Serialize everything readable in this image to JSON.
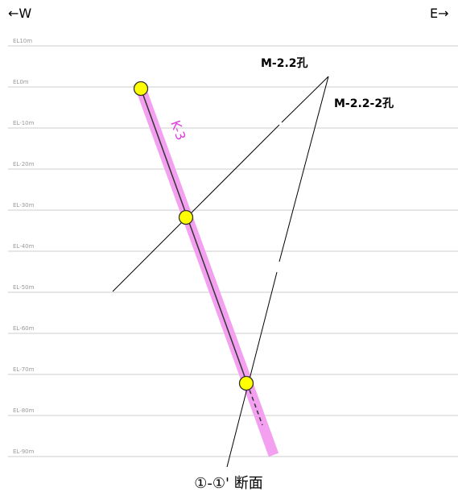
{
  "header": {
    "west": "←W",
    "east": "E→"
  },
  "levels": [
    "EL10m",
    "EL0m",
    "EL-10m",
    "EL-20m",
    "EL-30m",
    "EL-40m",
    "EL-50m",
    "EL-60m",
    "EL-70m",
    "EL-80m",
    "EL-90m"
  ],
  "boreholes": [
    {
      "label": "M-2.2孔"
    },
    {
      "label": "M-2.2-2孔"
    },
    {
      "label": "K-3"
    }
  ],
  "section": "①-①' 断面"
}
